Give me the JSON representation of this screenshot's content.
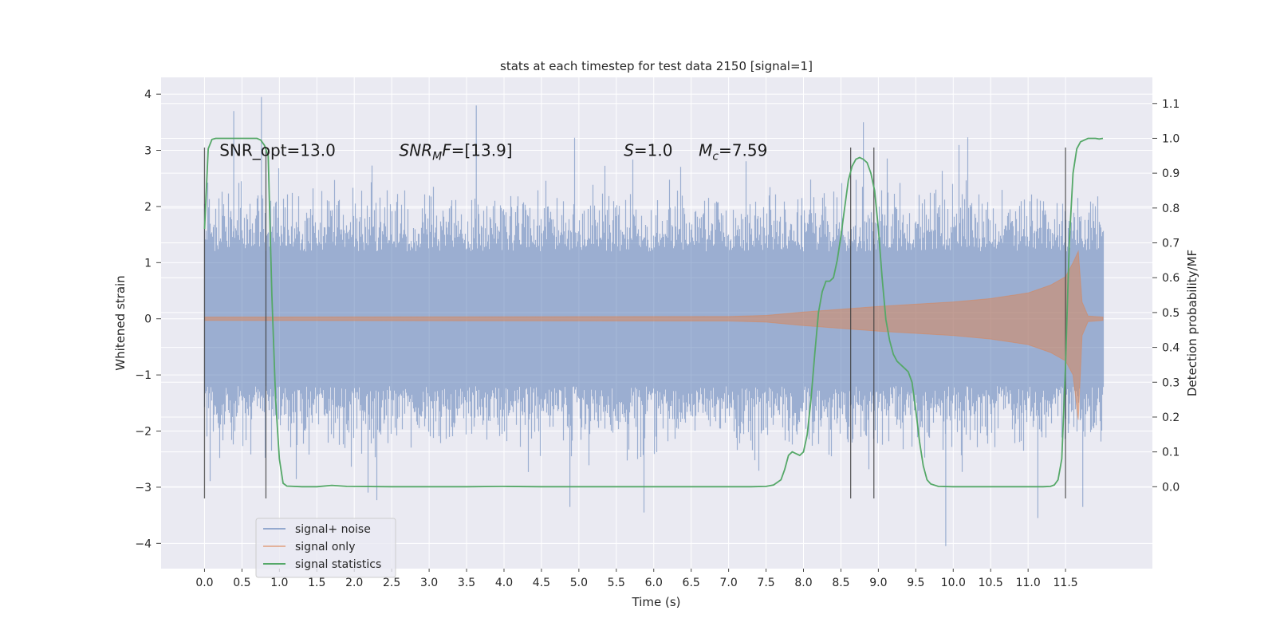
{
  "chart_data": {
    "type": "line",
    "title": "stats at each timestep for test data 2150 [signal=1]",
    "xlabel": "Time (s)",
    "ylabel": "Whitened strain",
    "y2label": "Detection probability/MF",
    "xlim": [
      -0.58,
      12.66
    ],
    "ylim": [
      -4.45,
      4.3
    ],
    "y2lim": [
      -0.235,
      1.175
    ],
    "x_ticks": [
      0.0,
      0.5,
      1.0,
      1.5,
      2.0,
      2.5,
      3.0,
      3.5,
      4.0,
      4.5,
      5.0,
      5.5,
      6.0,
      6.5,
      7.0,
      7.5,
      8.0,
      8.5,
      9.0,
      9.5,
      10.0,
      10.5,
      11.0,
      11.5
    ],
    "x_tick_labels": [
      "0.0",
      "0.5",
      "1.0",
      "1.5",
      "2.0",
      "2.5",
      "3.0",
      "3.5",
      "4.0",
      "4.5",
      "5.0",
      "5.5",
      "6.0",
      "6.5",
      "7.0",
      "7.5",
      "8.0",
      "8.5",
      "9.0",
      "9.5",
      "10.0",
      "10.5",
      "11.0",
      "11.5"
    ],
    "y_ticks": [
      -4,
      -3,
      -2,
      -1,
      0,
      1,
      2,
      3,
      4
    ],
    "y_tick_labels": [
      "−4",
      "−3",
      "−2",
      "−1",
      "0",
      "1",
      "2",
      "3",
      "4"
    ],
    "y2_ticks": [
      0.0,
      0.1,
      0.2,
      0.3,
      0.4,
      0.5,
      0.6,
      0.7,
      0.8,
      0.9,
      1.0,
      1.1
    ],
    "y2_tick_labels": [
      "0.0",
      "0.1",
      "0.2",
      "0.3",
      "0.4",
      "0.5",
      "0.6",
      "0.7",
      "0.8",
      "0.9",
      "1.0",
      "1.1"
    ],
    "grid": true,
    "legend_position": "lower-left",
    "annotations": [
      {
        "text": "SNR_opt=13.0",
        "x": 0.2,
        "y": 3.0
      },
      {
        "text": "SNR",
        "sub": "M",
        "after": "F=[13.9]",
        "italic": true,
        "x": 2.6,
        "y": 3.0
      },
      {
        "text": "S",
        "after": "=1.0",
        "italic": true,
        "x": 5.6,
        "y": 3.0
      },
      {
        "text": "M",
        "sub": "c",
        "after": "=7.59",
        "italic": true,
        "x": 6.6,
        "y": 3.0
      }
    ],
    "vlines": [
      {
        "x": 0.0,
        "ymin": -3.2,
        "ymax": 3.05
      },
      {
        "x": 0.82,
        "ymin": -3.2,
        "ymax": 3.05
      },
      {
        "x": 8.63,
        "ymin": -3.2,
        "ymax": 3.05
      },
      {
        "x": 8.94,
        "ymin": -3.2,
        "ymax": 3.05
      },
      {
        "x": 11.5,
        "ymin": -3.2,
        "ymax": 3.05
      }
    ],
    "series": [
      {
        "name": "signal+ noise",
        "color": "#4c72b0",
        "kind": "noise",
        "x_range": [
          0.0,
          12.0
        ],
        "notable_peaks": [
          {
            "x": 0.39,
            "y": 3.7
          },
          {
            "x": 0.76,
            "y": 3.95
          },
          {
            "x": 3.63,
            "y": 3.8
          },
          {
            "x": 8.8,
            "y": 3.5
          },
          {
            "x": 9.9,
            "y": -4.05
          },
          {
            "x": 5.87,
            "y": -3.45
          },
          {
            "x": 11.13,
            "y": -3.55
          },
          {
            "x": 11.73,
            "y": -3.35
          },
          {
            "x": 4.88,
            "y": -3.35
          }
        ]
      },
      {
        "name": "signal only",
        "color": "#dd8452",
        "kind": "chirp",
        "envelope_x": [
          0.0,
          7.0,
          7.5,
          8.0,
          8.5,
          9.0,
          9.5,
          10.0,
          10.5,
          11.0,
          11.3,
          11.5,
          11.6,
          11.67,
          11.72,
          11.8,
          12.0
        ],
        "envelope_y": [
          0.03,
          0.04,
          0.06,
          0.12,
          0.17,
          0.22,
          0.26,
          0.3,
          0.36,
          0.46,
          0.6,
          0.75,
          1.0,
          1.2,
          0.3,
          0.05,
          0.03
        ]
      },
      {
        "name": "signal statistics",
        "color": "#55a868",
        "kind": "line",
        "axis": "right",
        "x": [
          0.0,
          0.05,
          0.1,
          0.15,
          0.2,
          0.3,
          0.4,
          0.5,
          0.6,
          0.7,
          0.75,
          0.8,
          0.85,
          0.9,
          0.95,
          1.0,
          1.05,
          1.1,
          1.3,
          1.5,
          1.7,
          1.9,
          2.5,
          3.0,
          3.5,
          4.0,
          4.5,
          5.0,
          6.0,
          7.0,
          7.3,
          7.5,
          7.6,
          7.7,
          7.75,
          7.8,
          7.85,
          7.9,
          7.95,
          8.0,
          8.05,
          8.1,
          8.15,
          8.2,
          8.25,
          8.3,
          8.35,
          8.4,
          8.45,
          8.5,
          8.55,
          8.6,
          8.65,
          8.7,
          8.75,
          8.8,
          8.85,
          8.9,
          8.95,
          9.0,
          9.05,
          9.1,
          9.15,
          9.2,
          9.25,
          9.3,
          9.35,
          9.4,
          9.45,
          9.5,
          9.55,
          9.6,
          9.65,
          9.7,
          9.8,
          10.0,
          10.5,
          11.0,
          11.2,
          11.3,
          11.35,
          11.4,
          11.45,
          11.5,
          11.55,
          11.6,
          11.65,
          11.7,
          11.8,
          11.9,
          11.95,
          12.0
        ],
        "y": [
          0.74,
          0.97,
          0.997,
          1.0,
          1.0,
          1.0,
          1.0,
          1.0,
          1.0,
          1.0,
          0.995,
          0.98,
          0.95,
          0.55,
          0.25,
          0.08,
          0.01,
          0.002,
          0.0,
          0.0,
          0.004,
          0.001,
          0.0,
          0.0,
          0.0,
          0.001,
          0.0,
          0.0,
          0.0,
          0.0,
          0.0,
          0.001,
          0.005,
          0.02,
          0.05,
          0.09,
          0.1,
          0.095,
          0.09,
          0.1,
          0.15,
          0.25,
          0.38,
          0.5,
          0.56,
          0.59,
          0.59,
          0.6,
          0.65,
          0.72,
          0.8,
          0.88,
          0.92,
          0.94,
          0.945,
          0.94,
          0.93,
          0.9,
          0.85,
          0.74,
          0.6,
          0.48,
          0.42,
          0.38,
          0.36,
          0.35,
          0.34,
          0.33,
          0.3,
          0.22,
          0.13,
          0.06,
          0.02,
          0.008,
          0.001,
          0.0,
          0.0,
          0.0,
          0.0,
          0.001,
          0.005,
          0.02,
          0.08,
          0.35,
          0.7,
          0.9,
          0.97,
          0.99,
          1.0,
          1.0,
          0.998,
          1.0
        ]
      }
    ]
  }
}
